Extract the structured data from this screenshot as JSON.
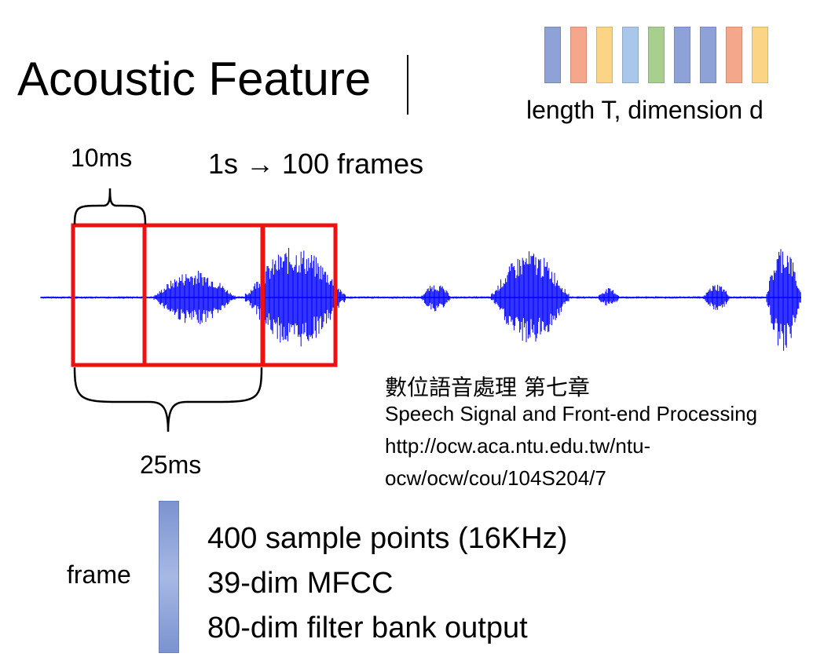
{
  "title": "Acoustic Feature",
  "feature_sequence": {
    "label": "length T, dimension d",
    "colors": [
      "#8ea2d8",
      "#f4a78a",
      "#fbd485",
      "#a9c7ea",
      "#a8cf8e",
      "#8ea2d8",
      "#8ea2d8",
      "#f4a78a",
      "#fbd485"
    ]
  },
  "frame_rate": "1s → 100 frames",
  "hop_label": "10ms",
  "window_label": "25ms",
  "reference": {
    "zh": "數位語音處理 第七章",
    "en": "Speech Signal and Front-end Processing",
    "url_line1": "http://ocw.aca.ntu.edu.tw/ntu-",
    "url_line2": "ocw/ocw/cou/104S204/7"
  },
  "frame": {
    "label": "frame",
    "properties": [
      "400 sample points (16KHz)",
      "39-dim MFCC",
      "80-dim filter bank output"
    ]
  },
  "colors": {
    "waveform": "#0000ff",
    "frame_box": "#ee1111",
    "frame_bar": "#8ea2d8"
  }
}
